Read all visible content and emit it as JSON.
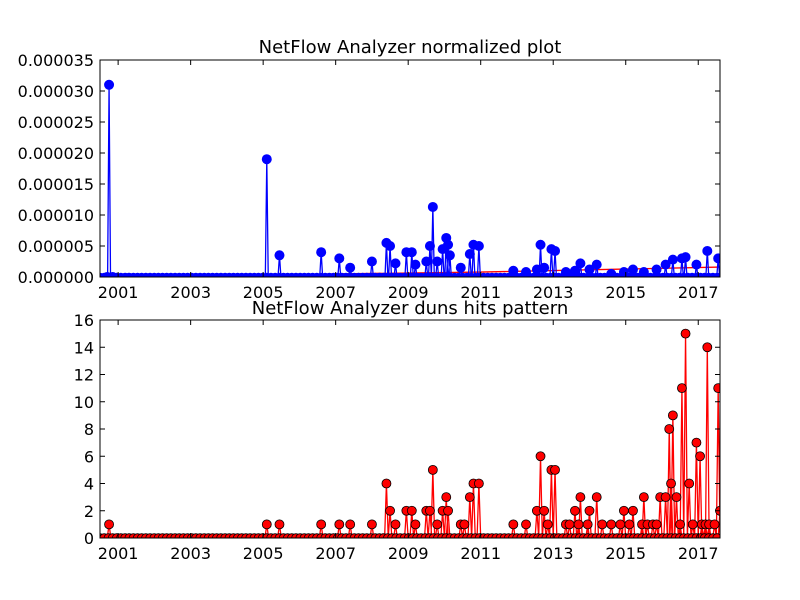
{
  "chart_data": [
    {
      "type": "line",
      "title": "NetFlow Analyzer normalized plot",
      "xlabel": "",
      "ylabel": "",
      "xlim": [
        2000.5,
        2017.6
      ],
      "ylim": [
        0,
        3.5e-05
      ],
      "x_tick_labels": [
        "2001",
        "2003",
        "2005",
        "2007",
        "2009",
        "2011",
        "2013",
        "2015",
        "2017"
      ],
      "x_tick_values": [
        2001,
        2003,
        2005,
        2007,
        2009,
        2011,
        2013,
        2015,
        2017
      ],
      "y_tick_labels": [
        "0.000000",
        "0.000005",
        "0.000010",
        "0.000015",
        "0.000020",
        "0.000025",
        "0.000030",
        "0.000035"
      ],
      "y_tick_values": [
        0,
        5e-06,
        1e-05,
        1.5e-05,
        2e-05,
        2.5e-05,
        3e-05,
        3.5e-05
      ],
      "grid": false,
      "colors": {
        "series": "#0000ff",
        "trend": "#ff0000"
      },
      "series": [
        {
          "values": [
            [
              2000.7,
              0
            ],
            [
              2000.75,
              3.1e-05
            ],
            [
              2000.85,
              0
            ],
            [
              2005.1,
              1.9e-05
            ],
            [
              2005.45,
              3.5e-06
            ],
            [
              2006.6,
              4e-06
            ],
            [
              2007.1,
              3e-06
            ],
            [
              2007.4,
              1.5e-06
            ],
            [
              2008.0,
              2.5e-06
            ],
            [
              2008.4,
              5.5e-06
            ],
            [
              2008.5,
              5e-06
            ],
            [
              2008.65,
              2.2e-06
            ],
            [
              2008.95,
              4e-06
            ],
            [
              2009.1,
              4e-06
            ],
            [
              2009.2,
              2e-06
            ],
            [
              2009.5,
              2.5e-06
            ],
            [
              2009.6,
              5e-06
            ],
            [
              2009.68,
              1.13e-05
            ],
            [
              2009.8,
              2.5e-06
            ],
            [
              2009.95,
              4.5e-06
            ],
            [
              2010.05,
              6.3e-06
            ],
            [
              2010.1,
              5.2e-06
            ],
            [
              2010.15,
              3.5e-06
            ],
            [
              2010.45,
              1.5e-06
            ],
            [
              2010.7,
              3.7e-06
            ],
            [
              2010.8,
              5.2e-06
            ],
            [
              2010.95,
              5e-06
            ],
            [
              2011.9,
              1e-06
            ],
            [
              2012.25,
              8e-07
            ],
            [
              2012.55,
              1.2e-06
            ],
            [
              2012.65,
              5.2e-06
            ],
            [
              2012.75,
              1.5e-06
            ],
            [
              2012.95,
              4.5e-06
            ],
            [
              2013.05,
              4.2e-06
            ],
            [
              2013.35,
              8e-07
            ],
            [
              2013.6,
              1e-06
            ],
            [
              2013.75,
              2.2e-06
            ],
            [
              2014.0,
              1.2e-06
            ],
            [
              2014.2,
              2e-06
            ],
            [
              2014.6,
              5e-07
            ],
            [
              2014.95,
              8e-07
            ],
            [
              2015.2,
              1.2e-06
            ],
            [
              2015.5,
              8e-07
            ],
            [
              2015.85,
              1.2e-06
            ],
            [
              2016.1,
              2e-06
            ],
            [
              2016.3,
              2.8e-06
            ],
            [
              2016.55,
              3e-06
            ],
            [
              2016.65,
              3.2e-06
            ],
            [
              2016.95,
              2e-06
            ],
            [
              2017.25,
              4.2e-06
            ],
            [
              2017.55,
              3e-06
            ]
          ]
        },
        {
          "values": [
            [
              2000.5,
              0
            ],
            [
              2011.0,
              8e-07
            ],
            [
              2017.6,
              1.6e-06
            ]
          ]
        }
      ]
    },
    {
      "type": "line",
      "title": "NetFlow Analyzer duns hits pattern",
      "xlabel": "",
      "ylabel": "",
      "xlim": [
        2000.5,
        2017.6
      ],
      "ylim": [
        0,
        16
      ],
      "x_tick_labels": [
        "2001",
        "2003",
        "2005",
        "2007",
        "2009",
        "2011",
        "2013",
        "2015",
        "2017"
      ],
      "x_tick_values": [
        2001,
        2003,
        2005,
        2007,
        2009,
        2011,
        2013,
        2015,
        2017
      ],
      "y_tick_labels": [
        "0",
        "2",
        "4",
        "6",
        "8",
        "10",
        "12",
        "14",
        "16"
      ],
      "y_tick_values": [
        0,
        2,
        4,
        6,
        8,
        10,
        12,
        14,
        16
      ],
      "grid": false,
      "colors": {
        "series": "#ff0000",
        "marker_edge": "#000000"
      },
      "series": [
        {
          "values": [
            [
              2000.75,
              1
            ],
            [
              2005.1,
              1
            ],
            [
              2005.45,
              1
            ],
            [
              2006.6,
              1
            ],
            [
              2007.1,
              1
            ],
            [
              2007.4,
              1
            ],
            [
              2008.0,
              1
            ],
            [
              2008.4,
              4
            ],
            [
              2008.5,
              2
            ],
            [
              2008.65,
              1
            ],
            [
              2008.95,
              2
            ],
            [
              2009.1,
              2
            ],
            [
              2009.2,
              1
            ],
            [
              2009.5,
              2
            ],
            [
              2009.6,
              2
            ],
            [
              2009.68,
              5
            ],
            [
              2009.8,
              1
            ],
            [
              2009.95,
              2
            ],
            [
              2010.05,
              3
            ],
            [
              2010.1,
              2
            ],
            [
              2010.45,
              1
            ],
            [
              2010.55,
              1
            ],
            [
              2010.7,
              3
            ],
            [
              2010.8,
              4
            ],
            [
              2010.95,
              4
            ],
            [
              2011.9,
              1
            ],
            [
              2012.25,
              1
            ],
            [
              2012.55,
              2
            ],
            [
              2012.65,
              6
            ],
            [
              2012.75,
              2
            ],
            [
              2012.85,
              1
            ],
            [
              2012.95,
              5
            ],
            [
              2013.05,
              5
            ],
            [
              2013.35,
              1
            ],
            [
              2013.45,
              1
            ],
            [
              2013.6,
              2
            ],
            [
              2013.7,
              1
            ],
            [
              2013.75,
              3
            ],
            [
              2013.95,
              1
            ],
            [
              2014.0,
              2
            ],
            [
              2014.2,
              3
            ],
            [
              2014.35,
              1
            ],
            [
              2014.6,
              1
            ],
            [
              2014.85,
              1
            ],
            [
              2014.95,
              2
            ],
            [
              2015.1,
              1
            ],
            [
              2015.2,
              2
            ],
            [
              2015.45,
              1
            ],
            [
              2015.5,
              3
            ],
            [
              2015.6,
              1
            ],
            [
              2015.75,
              1
            ],
            [
              2015.85,
              1
            ],
            [
              2015.95,
              3
            ],
            [
              2016.1,
              3
            ],
            [
              2016.2,
              8
            ],
            [
              2016.25,
              4
            ],
            [
              2016.3,
              9
            ],
            [
              2016.4,
              3
            ],
            [
              2016.5,
              1
            ],
            [
              2016.55,
              11
            ],
            [
              2016.65,
              15
            ],
            [
              2016.75,
              4
            ],
            [
              2016.85,
              1
            ],
            [
              2016.95,
              7
            ],
            [
              2017.05,
              6
            ],
            [
              2017.1,
              1
            ],
            [
              2017.2,
              1
            ],
            [
              2017.25,
              14
            ],
            [
              2017.3,
              1
            ],
            [
              2017.45,
              1
            ],
            [
              2017.55,
              11
            ],
            [
              2017.6,
              2
            ]
          ]
        }
      ]
    }
  ]
}
